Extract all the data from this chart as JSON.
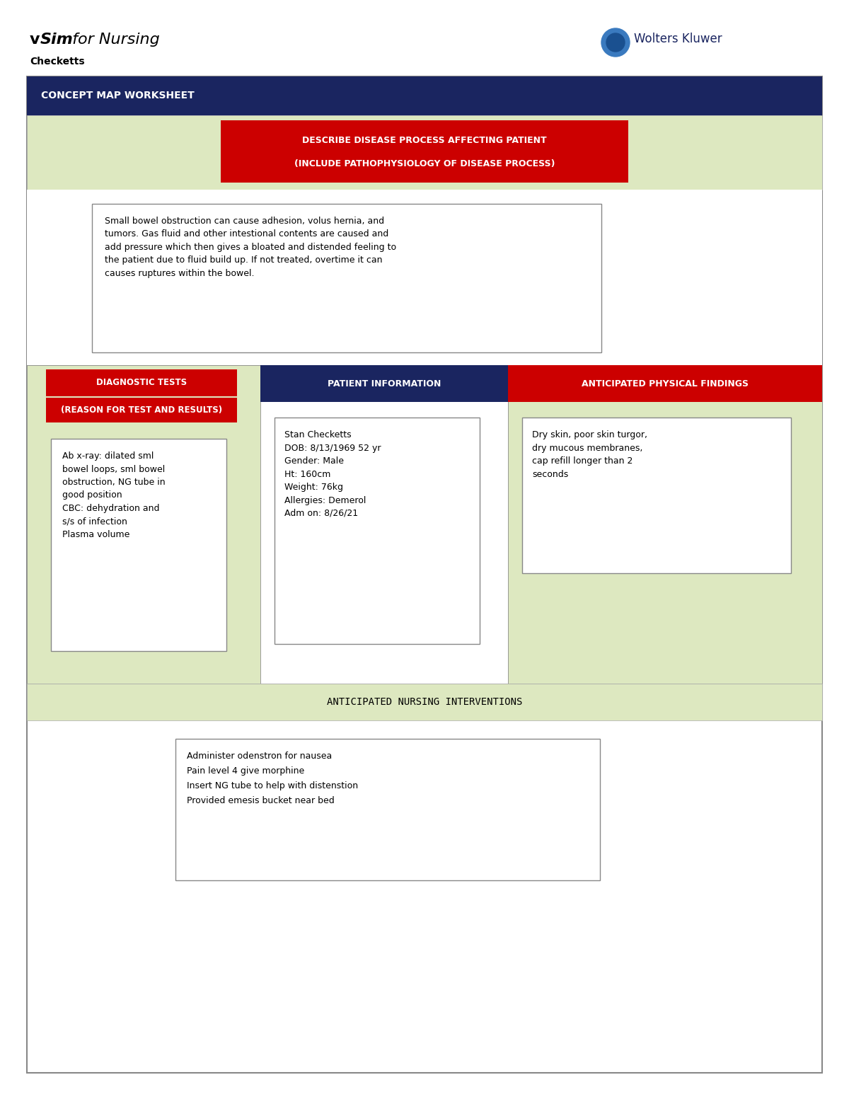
{
  "page_bg": "#ffffff",
  "header_sub": "Checketts",
  "wk_logo_text": "Wolters Kluwer",
  "section_header_text": "CONCEPT MAP WORKSHEET",
  "light_green_bg": "#dde8c0",
  "red_bg": "#cc0000",
  "navy_blue": "#1a2560",
  "describe_label_line1": "DESCRIBE DISEASE PROCESS AFFECTING PATIENT",
  "describe_label_line2": "(INCLUDE PATHOPHYSIOLOGY OF DISEASE PROCESS)",
  "disease_text": "Small bowel obstruction can cause adhesion, volus hernia, and\ntumors. Gas fluid and other intestional contents are caused and\nadd pressure which then gives a bloated and distended feeling to\nthe patient due to fluid build up. If not treated, overtime it can\ncauses ruptures within the bowel.",
  "diag_label1": "DIAGNOSTIC TESTS",
  "diag_label2": "(REASON FOR TEST AND RESULTS)",
  "patient_info_label": "PATIENT INFORMATION",
  "anticipated_label": "ANTICIPATED PHYSICAL FINDINGS",
  "diag_text": "Ab x-ray: dilated sml\nbowel loops, sml bowel\nobstruction, NG tube in\ngood position\nCBC: dehydration and\ns/s of infection\nPlasma volume",
  "patient_text": "Stan Checketts\nDOB: 8/13/1969 52 yr\nGender: Male\nHt: 160cm\nWeight: 76kg\nAllergies: Demerol\nAdm on: 8/26/21",
  "findings_text": "Dry skin, poor skin turgor,\ndry mucous membranes,\ncap refill longer than 2\nseconds",
  "nursing_label": "ANTICIPATED NURSING INTERVENTIONS",
  "nursing_text": "Administer odenstron for nausea\nPain level 4 give morphine\nInsert NG tube to help with distenstion\nProvided emesis bucket near bed",
  "figw": 12.0,
  "figh": 15.53,
  "dpi": 100
}
